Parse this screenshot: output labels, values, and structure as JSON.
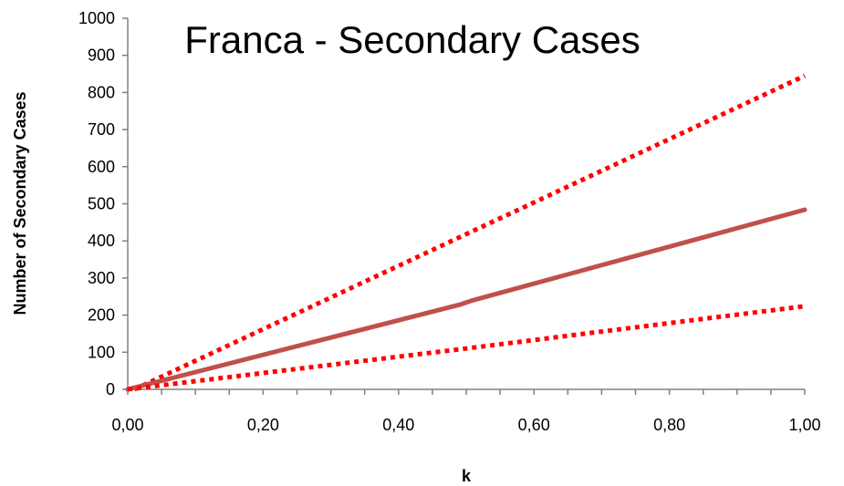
{
  "chart_data": {
    "type": "line",
    "title": "Franca - Secondary Cases",
    "xlabel": "k",
    "ylabel": "Number of Secondary  Cases",
    "xlim": [
      0,
      1
    ],
    "ylim": [
      0,
      1000
    ],
    "x_ticks": [
      0,
      0.2,
      0.4,
      0.6,
      0.8,
      1.0
    ],
    "x_tick_labels": [
      "0,00",
      "0,20",
      "0,40",
      "0,60",
      "0,80",
      "1,00"
    ],
    "y_ticks": [
      0,
      100,
      200,
      300,
      400,
      500,
      600,
      700,
      800,
      900,
      1000
    ],
    "y_tick_labels": [
      "0",
      "100",
      "200",
      "300",
      "400",
      "500",
      "600",
      "700",
      "800",
      "900",
      "1000"
    ],
    "grid": false,
    "legend": "none",
    "series": [
      {
        "style": "dotted",
        "color": "#ff0000",
        "x": [
          0.01,
          1.0
        ],
        "y": [
          0,
          845
        ]
      },
      {
        "style": "solid",
        "color": "#c0504d",
        "x": [
          0.0,
          0.49,
          0.51,
          1.0
        ],
        "y": [
          0,
          228,
          240,
          484
        ]
      },
      {
        "style": "dotted",
        "color": "#ff0000",
        "x": [
          0.0,
          0.5,
          1.0
        ],
        "y": [
          0,
          110,
          224
        ]
      }
    ]
  }
}
